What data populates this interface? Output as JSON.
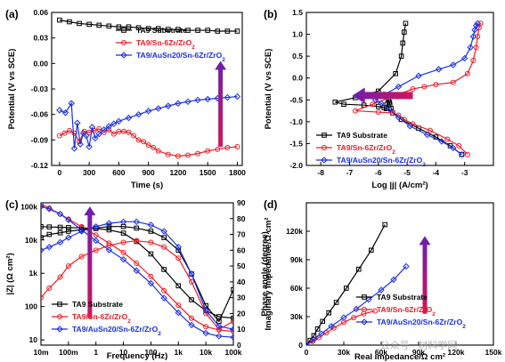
{
  "colors": {
    "ta9": "#000000",
    "sn": "#ee1c25",
    "ausn": "#1a2fe6",
    "arrow_top": "#6a1fb0",
    "arrow_bottom": "#d4145a"
  },
  "watermark": "公众号 · 材料学网",
  "chart_data": [
    {
      "id": "a",
      "type": "line",
      "panel": "(a)",
      "xlabel": "Time (s)",
      "ylabel": "Potential (V vs SCE)",
      "xlim": [
        -80,
        1850
      ],
      "ylim": [
        -0.12,
        0.06
      ],
      "xticks": [
        0,
        300,
        600,
        900,
        1200,
        1500,
        1800
      ],
      "yticks": [
        -0.12,
        -0.09,
        -0.06,
        -0.03,
        0.0,
        0.03,
        0.06
      ],
      "ytick_labels": [
        "-0.12",
        "-0.09",
        "-0.06",
        "-0.03",
        "0.00",
        "0.03",
        "0.06"
      ],
      "legend_position": "top-right",
      "arrow": {
        "direction": "up",
        "x": 1630,
        "y_from": -0.098,
        "y_to": 0.003
      },
      "series": [
        {
          "name": "TA9 Substrate",
          "color_key": "ta9",
          "marker": "square",
          "x": [
            0,
            100,
            200,
            300,
            400,
            500,
            600,
            700,
            800,
            900,
            1000,
            1100,
            1200,
            1300,
            1400,
            1500,
            1600,
            1700,
            1800
          ],
          "y": [
            0.051,
            0.049,
            0.047,
            0.046,
            0.045,
            0.044,
            0.043,
            0.043,
            0.042,
            0.041,
            0.041,
            0.04,
            0.04,
            0.039,
            0.039,
            0.039,
            0.038,
            0.038,
            0.038
          ]
        },
        {
          "name": "TA9/Sn-6Zr/ZrO2",
          "color_key": "sn",
          "marker": "circle",
          "x": [
            0,
            50,
            100,
            150,
            200,
            250,
            300,
            350,
            400,
            450,
            500,
            550,
            600,
            650,
            700,
            750,
            800,
            850,
            900,
            950,
            1000,
            1100,
            1200,
            1300,
            1400,
            1500,
            1600,
            1700,
            1800
          ],
          "y": [
            -0.085,
            -0.082,
            -0.079,
            -0.082,
            -0.092,
            -0.08,
            -0.081,
            -0.079,
            -0.077,
            -0.081,
            -0.078,
            -0.083,
            -0.08,
            -0.08,
            -0.081,
            -0.085,
            -0.09,
            -0.092,
            -0.096,
            -0.099,
            -0.103,
            -0.107,
            -0.109,
            -0.108,
            -0.106,
            -0.103,
            -0.101,
            -0.099,
            -0.098
          ]
        },
        {
          "name": "TA9/AuSn20/Sn-6Zr/ZrO2",
          "color_key": "ausn",
          "marker": "diamond",
          "x": [
            0,
            60,
            120,
            150,
            180,
            210,
            240,
            270,
            300,
            330,
            360,
            400,
            450,
            500,
            550,
            600,
            700,
            800,
            900,
            1000,
            1100,
            1200,
            1300,
            1400,
            1500,
            1600,
            1700,
            1800
          ],
          "y": [
            -0.055,
            -0.058,
            -0.047,
            -0.1,
            -0.07,
            -0.095,
            -0.082,
            -0.085,
            -0.098,
            -0.075,
            -0.088,
            -0.083,
            -0.078,
            -0.074,
            -0.071,
            -0.068,
            -0.064,
            -0.06,
            -0.056,
            -0.053,
            -0.05,
            -0.047,
            -0.045,
            -0.043,
            -0.042,
            -0.041,
            -0.04,
            -0.039
          ]
        }
      ]
    },
    {
      "id": "b",
      "type": "line",
      "panel": "(b)",
      "xlabel": "Log |j| (A/cm²)",
      "ylabel": "Potential (V vs SCE)",
      "xlim": [
        -8.5,
        -2
      ],
      "ylim": [
        -2.0,
        1.5
      ],
      "xticks": [
        -8,
        -7,
        -6,
        -5,
        -4,
        -3
      ],
      "yticks": [
        -2.0,
        -1.5,
        -1.0,
        -0.5,
        0.0,
        0.5,
        1.0,
        1.5
      ],
      "ytick_labels": [
        "-2.0",
        "-1.5",
        "-1.0",
        "-0.5",
        "0.0",
        "0.5",
        "1.0",
        "1.5"
      ],
      "legend_position": "bottom-left",
      "arrow": {
        "direction": "left",
        "y": -0.4,
        "x_from": -4.8,
        "x_to": -6.9
      },
      "series": [
        {
          "name": "TA9 Substrate",
          "color_key": "ta9",
          "marker": "square",
          "x": [
            -3.1,
            -3.5,
            -4.0,
            -4.6,
            -5.2,
            -5.5,
            -5.55,
            -5.6,
            -5.62,
            -5.65,
            -5.7,
            -5.72,
            -5.8,
            -6.0,
            -6.5,
            -7.2,
            -7.5,
            -6.8,
            -6.0,
            -5.4,
            -5.2,
            -5.15,
            -5.1,
            -5.05
          ],
          "y": [
            -1.75,
            -1.55,
            -1.35,
            -1.15,
            -0.95,
            -0.8,
            -0.7,
            -0.6,
            -0.55,
            -0.5,
            -0.6,
            -0.7,
            -0.68,
            -0.65,
            -0.62,
            -0.6,
            -0.55,
            -0.45,
            -0.3,
            0.1,
            0.5,
            0.8,
            1.05,
            1.25
          ]
        },
        {
          "name": "TA9/Sn-6Zr/ZrO2",
          "color_key": "sn",
          "marker": "circle",
          "x": [
            -2.9,
            -3.2,
            -3.6,
            -4.2,
            -4.8,
            -5.1,
            -5.3,
            -5.5,
            -6.0,
            -6.8,
            -6.2,
            -5.4,
            -4.8,
            -4.4,
            -4.0,
            -3.4,
            -2.9,
            -2.7,
            -2.6,
            -2.55,
            -2.5,
            -2.45
          ],
          "y": [
            -1.75,
            -1.55,
            -1.4,
            -1.2,
            -1.05,
            -0.95,
            -0.85,
            -0.8,
            -0.78,
            -0.75,
            -0.6,
            -0.4,
            -0.25,
            -0.2,
            -0.15,
            -0.1,
            0.1,
            0.4,
            0.7,
            0.95,
            1.15,
            1.25
          ]
        },
        {
          "name": "TA9/AuSn20/Sn-6Zr/ZrO2",
          "color_key": "ausn",
          "marker": "diamond",
          "x": [
            -3.1,
            -3.4,
            -3.8,
            -4.3,
            -4.9,
            -5.3,
            -5.6,
            -5.9,
            -6.1,
            -5.8,
            -5.3,
            -4.6,
            -3.9,
            -3.4,
            -3.0,
            -2.8,
            -2.7,
            -2.65,
            -2.6,
            -2.55
          ],
          "y": [
            -1.75,
            -1.6,
            -1.45,
            -1.3,
            -1.1,
            -0.9,
            -0.72,
            -0.58,
            -0.5,
            -0.38,
            -0.2,
            0.05,
            0.2,
            0.3,
            0.45,
            0.7,
            0.95,
            1.1,
            1.2,
            1.25
          ]
        }
      ]
    },
    {
      "id": "c",
      "type": "line",
      "panel": "(c)",
      "xlabel": "Frequency (Hz)",
      "ylabel": "|Z| (Ω cm²)",
      "ylabel_right": "Phase angle (degree)",
      "xscale": "log",
      "yscale": "log",
      "xlim": [
        0.01,
        100000
      ],
      "ylim": [
        7,
        130000
      ],
      "y2lim": [
        0,
        90
      ],
      "xtick_labels": [
        "10m",
        "100m",
        "1",
        "10",
        "100",
        "1k",
        "10k",
        "100k"
      ],
      "xticks": [
        0.01,
        0.1,
        1,
        10,
        100,
        1000,
        10000,
        100000
      ],
      "ytick_labels": [
        "10",
        "100",
        "1k",
        "10k",
        "100k"
      ],
      "yticks": [
        10,
        100,
        1000,
        10000,
        100000
      ],
      "y2ticks": [
        0,
        10,
        20,
        30,
        40,
        50,
        60,
        70,
        80,
        90
      ],
      "legend_position": "bottom-left",
      "arrow": {
        "direction": "up",
        "x": 0.6,
        "y_from": 45,
        "y_to": 101000
      },
      "series": [
        {
          "name": "TA9 Substrate",
          "color_key": "ta9",
          "marker": "square",
          "kind": "modulus",
          "x": [
            0.01,
            0.02,
            0.05,
            0.1,
            0.3,
            1,
            3,
            10,
            30,
            100,
            300,
            1000,
            3000,
            10000,
            30000,
            100000
          ],
          "y": [
            25000,
            24500,
            24000,
            23500,
            23000,
            22000,
            20000,
            16000,
            9000,
            3800,
            1300,
            420,
            160,
            75,
            50,
            45
          ]
        },
        {
          "name": "TA9/Sn-6Zr/ZrO2",
          "color_key": "sn",
          "marker": "circle",
          "kind": "modulus",
          "x": [
            0.01,
            0.02,
            0.05,
            0.1,
            0.3,
            1,
            3,
            10,
            30,
            100,
            300,
            1000,
            3000,
            10000,
            30000,
            100000
          ],
          "y": [
            120000,
            90000,
            60000,
            42000,
            25000,
            14000,
            8000,
            4200,
            2000,
            800,
            300,
            110,
            45,
            25,
            20,
            18
          ]
        },
        {
          "name": "TA9/AuSn20/Sn-6Zr/ZrO2",
          "color_key": "ausn",
          "marker": "diamond",
          "kind": "modulus",
          "x": [
            0.01,
            0.02,
            0.05,
            0.1,
            0.3,
            1,
            3,
            10,
            30,
            100,
            300,
            1000,
            3000,
            10000,
            30000,
            100000
          ],
          "y": [
            100000,
            85000,
            60000,
            40000,
            20000,
            9500,
            5000,
            2600,
            1200,
            500,
            180,
            65,
            28,
            16,
            13,
            12
          ]
        },
        {
          "name": "",
          "color_key": "ta9",
          "marker": "square",
          "kind": "phase",
          "x": [
            0.01,
            0.02,
            0.05,
            0.1,
            0.3,
            1,
            3,
            10,
            30,
            100,
            300,
            1000,
            3000,
            10000,
            30000,
            100000
          ],
          "y": [
            68,
            70,
            71,
            72,
            73,
            74,
            75,
            75,
            74,
            72,
            68,
            60,
            45,
            25,
            15,
            35
          ]
        },
        {
          "name": "",
          "color_key": "sn",
          "marker": "circle",
          "kind": "phase",
          "x": [
            0.01,
            0.02,
            0.05,
            0.1,
            0.3,
            1,
            3,
            10,
            30,
            100,
            300,
            1000,
            3000,
            10000,
            30000,
            100000
          ],
          "y": [
            30,
            36,
            43,
            50,
            56,
            60,
            63,
            65,
            66,
            65,
            62,
            55,
            40,
            20,
            10,
            15
          ]
        },
        {
          "name": "",
          "color_key": "ausn",
          "marker": "diamond",
          "kind": "phase",
          "x": [
            0.01,
            0.02,
            0.05,
            0.1,
            0.3,
            1,
            3,
            10,
            30,
            100,
            300,
            1000,
            3000,
            10000,
            30000,
            100000
          ],
          "y": [
            60,
            62,
            65,
            68,
            72,
            75,
            77,
            78,
            78,
            76,
            72,
            62,
            45,
            22,
            12,
            10
          ]
        }
      ]
    },
    {
      "id": "d",
      "type": "scatter",
      "panel": "(d)",
      "xlabel": "Real impedance/Ω cm²",
      "ylabel": "Imaginary impedance/Ω cm²",
      "xlim": [
        0,
        150000
      ],
      "ylim": [
        0,
        150000
      ],
      "xticks": [
        0,
        30000,
        60000,
        90000,
        120000,
        150000
      ],
      "xtick_labels": [
        "0",
        "30k",
        "60k",
        "90k",
        "120k",
        "150k"
      ],
      "yticks": [
        0,
        30000,
        60000,
        90000,
        120000
      ],
      "ytick_labels": [
        "0",
        "30k",
        "60k",
        "90k",
        "120k"
      ],
      "legend_position": "bottom-right",
      "arrow": {
        "direction": "up",
        "x": 95000,
        "y_from": 33000,
        "y_to": 115000
      },
      "series": [
        {
          "name": "TA9 Substrate",
          "color_key": "ta9",
          "marker": "square",
          "x": [
            0,
            3000,
            6000,
            9000,
            13000,
            18000,
            24000,
            32000,
            42000,
            52000,
            63000
          ],
          "y": [
            0,
            5000,
            10000,
            17000,
            25000,
            34000,
            45000,
            60000,
            80000,
            100000,
            127000
          ]
        },
        {
          "name": "TA9/Sn-6Zr/ZrO2",
          "color_key": "sn",
          "marker": "circle",
          "x": [
            0,
            5000,
            10000,
            16000,
            22000,
            30000,
            38000,
            46000,
            55000
          ],
          "y": [
            0,
            4000,
            8000,
            13000,
            18000,
            24000,
            29000,
            33000,
            36000
          ]
        },
        {
          "name": "TA9/AuSn20/Sn-6Zr/ZrO2",
          "color_key": "ausn",
          "marker": "diamond",
          "x": [
            0,
            6000,
            12000,
            20000,
            30000,
            40000,
            50000,
            60000,
            70000,
            80000
          ],
          "y": [
            0,
            6000,
            12000,
            20000,
            29000,
            38000,
            48000,
            58000,
            69000,
            83000
          ]
        }
      ]
    }
  ]
}
